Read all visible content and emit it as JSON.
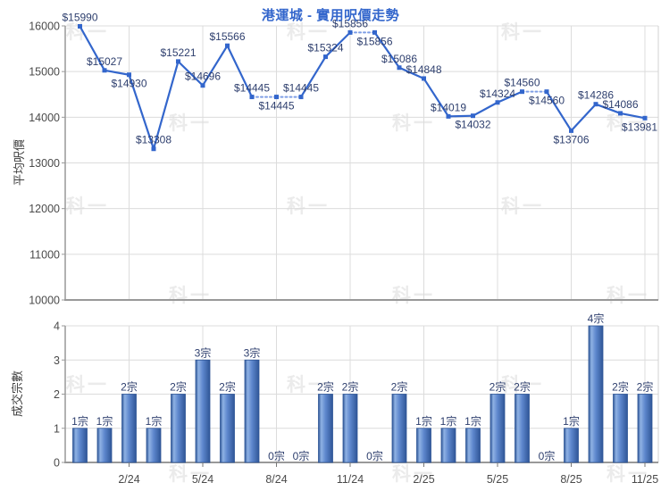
{
  "title": "港運城 - 實用呎價走勢",
  "watermark_text": "科一",
  "colors": {
    "title": "#3366CC",
    "line": "#3366CC",
    "line_dotted": "#7E9EE5",
    "data_label": "#2E3F6E",
    "axis_text": "#4A4A4A",
    "grid": "#DCDCDC",
    "frame": "#D2D2D2",
    "axis_line": "#999999",
    "bar_edge": "#2F5697",
    "bar_light": "#8FB2E4",
    "bar_mid": "#5E87CD"
  },
  "x_axis": {
    "tick_labels": [
      "2/24",
      "5/24",
      "8/24",
      "11/24",
      "2/25",
      "5/25",
      "8/25",
      "11/25"
    ],
    "tick_indices": [
      2,
      5,
      8,
      11,
      14,
      17,
      20,
      23
    ]
  },
  "chart_data": [
    {
      "type": "line",
      "title": "港運城 - 實用呎價走勢",
      "ylabel": "平均呎價",
      "ylim": [
        10000,
        16000
      ],
      "yticks": [
        10000,
        11000,
        12000,
        13000,
        14000,
        15000,
        16000
      ],
      "grid": true,
      "legend": "none",
      "values": [
        15990,
        15027,
        14930,
        13308,
        15221,
        14696,
        15566,
        14445,
        14445,
        14445,
        15324,
        15856,
        15856,
        15086,
        14848,
        14019,
        14032,
        14324,
        14560,
        14560,
        13706,
        14286,
        14086,
        13981
      ],
      "point_labels": [
        "$15990",
        "$15027",
        "$14930",
        "$13308",
        "$15221",
        "$14696",
        "$15566",
        "$14445",
        "$14445",
        "$14445",
        "$15324",
        "$15856",
        "$15856",
        "$15086",
        "$14848",
        "$14019",
        "$14032",
        "$14324",
        "$14560",
        "$14560",
        "$13706",
        "$14286",
        "$14086",
        "$13981"
      ],
      "label_below_indices": [
        2,
        8,
        12,
        16,
        19,
        20,
        23
      ],
      "dotted_segment_start_indices": [
        7,
        8,
        11,
        18
      ]
    },
    {
      "type": "bar",
      "ylabel": "成交宗數",
      "ylim": [
        0,
        4
      ],
      "yticks": [
        0,
        1,
        2,
        3,
        4
      ],
      "grid": true,
      "legend": "none",
      "values": [
        1,
        1,
        2,
        1,
        2,
        3,
        2,
        3,
        0,
        0,
        2,
        2,
        0,
        2,
        1,
        1,
        1,
        2,
        2,
        0,
        1,
        4,
        2,
        2
      ],
      "bar_labels": [
        "1宗",
        "1宗",
        "2宗",
        "1宗",
        "2宗",
        "3宗",
        "2宗",
        "3宗",
        "0宗",
        "0宗",
        "2宗",
        "2宗",
        "0宗",
        "2宗",
        "1宗",
        "1宗",
        "1宗",
        "2宗",
        "2宗",
        "0宗",
        "1宗",
        "4宗",
        "2宗",
        "2宗"
      ]
    }
  ]
}
